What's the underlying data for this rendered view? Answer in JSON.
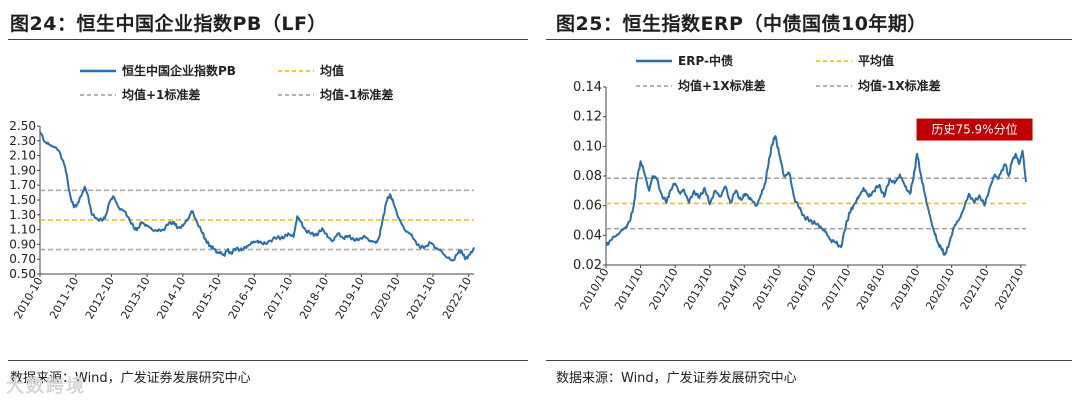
{
  "left": {
    "title": "图24：恒生中国企业指数PB（LF）",
    "source": "数据来源：Wind，广发证券发展研究中心",
    "chart_data": {
      "type": "line",
      "title": "图24：恒生中国企业指数PB（LF）",
      "ylim": [
        0.5,
        2.5
      ],
      "yticks": [
        "2.50",
        "2.30",
        "2.10",
        "1.90",
        "1.70",
        "1.50",
        "1.30",
        "1.10",
        "0.90",
        "0.70",
        "0.50"
      ],
      "xticks": [
        "2010-10",
        "2011-10",
        "2012-10",
        "2013-10",
        "2014-10",
        "2015-10",
        "2016-10",
        "2017-10",
        "2018-10",
        "2019-10",
        "2020-10",
        "2021-10",
        "2022-10"
      ],
      "x_start": 2010.75,
      "x_end": 2022.9,
      "legend": [
        "恒生中国企业指数PB",
        "均值",
        "均值+1标准差",
        "均值-1标准差"
      ],
      "legend_position": "top",
      "colors": {
        "series": "#2a6fa8",
        "mean": "#f0c419",
        "band": "#a6a6a6"
      },
      "reference_lines": {
        "mean": 1.23,
        "plus_1sd": 1.63,
        "minus_1sd": 0.83
      },
      "series": [
        {
          "name": "恒生中国企业指数PB",
          "t": [
            2010.75,
            2010.9,
            2011.0,
            2011.15,
            2011.3,
            2011.45,
            2011.6,
            2011.7,
            2011.8,
            2011.9,
            2012.0,
            2012.1,
            2012.2,
            2012.35,
            2012.5,
            2012.6,
            2012.7,
            2012.8,
            2012.95,
            2013.1,
            2013.25,
            2013.4,
            2013.5,
            2013.6,
            2013.75,
            2013.9,
            2014.05,
            2014.2,
            2014.35,
            2014.5,
            2014.6,
            2014.75,
            2014.9,
            2015.0,
            2015.15,
            2015.3,
            2015.4,
            2015.5,
            2015.6,
            2015.7,
            2015.8,
            2015.9,
            2016.0,
            2016.1,
            2016.25,
            2016.4,
            2016.55,
            2016.7,
            2016.85,
            2017.0,
            2017.2,
            2017.4,
            2017.55,
            2017.7,
            2017.85,
            2017.95,
            2018.05,
            2018.2,
            2018.35,
            2018.5,
            2018.65,
            2018.8,
            2018.95,
            2019.1,
            2019.25,
            2019.4,
            2019.55,
            2019.7,
            2019.85,
            2020.0,
            2020.15,
            2020.25,
            2020.35,
            2020.45,
            2020.55,
            2020.65,
            2020.8,
            2020.95,
            2021.1,
            2021.25,
            2021.4,
            2021.55,
            2021.7,
            2021.85,
            2022.0,
            2022.15,
            2022.3,
            2022.45,
            2022.55,
            2022.65,
            2022.75,
            2022.85,
            2022.9
          ],
          "values": [
            2.42,
            2.28,
            2.25,
            2.22,
            2.15,
            1.95,
            1.55,
            1.4,
            1.45,
            1.55,
            1.68,
            1.55,
            1.3,
            1.25,
            1.22,
            1.3,
            1.48,
            1.55,
            1.4,
            1.35,
            1.25,
            1.1,
            1.12,
            1.2,
            1.15,
            1.1,
            1.08,
            1.1,
            1.18,
            1.2,
            1.12,
            1.15,
            1.25,
            1.35,
            1.2,
            1.05,
            0.95,
            0.88,
            0.85,
            0.8,
            0.78,
            0.76,
            0.82,
            0.78,
            0.85,
            0.82,
            0.88,
            0.92,
            0.95,
            0.9,
            0.95,
            1.0,
            0.98,
            1.05,
            1.0,
            1.28,
            1.2,
            1.08,
            1.05,
            1.02,
            1.12,
            1.0,
            0.95,
            1.05,
            0.98,
            1.02,
            0.95,
            0.98,
            1.0,
            0.95,
            0.92,
            1.0,
            1.25,
            1.48,
            1.58,
            1.45,
            1.25,
            1.1,
            1.05,
            0.95,
            0.85,
            0.88,
            0.92,
            0.85,
            0.8,
            0.72,
            0.68,
            0.78,
            0.82,
            0.7,
            0.75,
            0.8,
            0.86
          ]
        }
      ]
    }
  },
  "right": {
    "title": "图25：恒生指数ERP（中债国债10年期）",
    "source": "数据来源：Wind，广发证券发展研究中心",
    "chart_data": {
      "type": "line",
      "title": "图25：恒生指数ERP（中债国债10年期）",
      "ylim": [
        0.02,
        0.14
      ],
      "yticks": [
        "0.14",
        "0.12",
        "0.10",
        "0.08",
        "0.06",
        "0.04",
        "0.02"
      ],
      "xticks": [
        "2010/10",
        "2011/10",
        "2012/10",
        "2013/10",
        "2014/10",
        "2015/10",
        "2016/10",
        "2017/10",
        "2018/10",
        "2019/10",
        "2020/10",
        "2021/10",
        "2022/10"
      ],
      "x_start": 2010.75,
      "x_end": 2022.9,
      "legend": [
        "ERP-中债",
        "平均值",
        "均值+1X标准差",
        "均值-1X标准差"
      ],
      "legend_position": "top",
      "colors": {
        "series": "#2a6fa8",
        "mean": "#f0c419",
        "band": "#a6a6a6",
        "annotation": "#c00000"
      },
      "reference_lines": {
        "mean": 0.0615,
        "plus_1sd": 0.0785,
        "minus_1sd": 0.0445
      },
      "annotation": {
        "text": "历史75.9%分位",
        "x": 2022.8,
        "y": 0.0985
      },
      "series": [
        {
          "name": "ERP-中债",
          "t": [
            2010.75,
            2010.85,
            2011.0,
            2011.15,
            2011.3,
            2011.45,
            2011.55,
            2011.65,
            2011.75,
            2011.85,
            2012.0,
            2012.1,
            2012.2,
            2012.35,
            2012.5,
            2012.6,
            2012.75,
            2012.9,
            2013.0,
            2013.15,
            2013.3,
            2013.45,
            2013.6,
            2013.75,
            2013.9,
            2014.05,
            2014.2,
            2014.35,
            2014.5,
            2014.65,
            2014.8,
            2014.95,
            2015.1,
            2015.25,
            2015.35,
            2015.45,
            2015.55,
            2015.65,
            2015.75,
            2015.9,
            2016.05,
            2016.2,
            2016.35,
            2016.5,
            2016.65,
            2016.8,
            2016.95,
            2017.1,
            2017.25,
            2017.4,
            2017.55,
            2017.7,
            2017.8,
            2017.9,
            2018.05,
            2018.2,
            2018.35,
            2018.5,
            2018.65,
            2018.8,
            2018.95,
            2019.1,
            2019.25,
            2019.4,
            2019.55,
            2019.65,
            2019.75,
            2019.85,
            2019.95,
            2020.05,
            2020.15,
            2020.25,
            2020.35,
            2020.45,
            2020.55,
            2020.65,
            2020.8,
            2020.95,
            2021.1,
            2021.25,
            2021.4,
            2021.55,
            2021.7,
            2021.85,
            2022.0,
            2022.1,
            2022.2,
            2022.3,
            2022.4,
            2022.5,
            2022.6,
            2022.7,
            2022.8,
            2022.9
          ],
          "values": [
            0.033,
            0.036,
            0.039,
            0.042,
            0.045,
            0.05,
            0.06,
            0.078,
            0.09,
            0.083,
            0.07,
            0.08,
            0.079,
            0.068,
            0.062,
            0.07,
            0.075,
            0.068,
            0.071,
            0.062,
            0.07,
            0.065,
            0.072,
            0.061,
            0.07,
            0.066,
            0.073,
            0.062,
            0.07,
            0.064,
            0.068,
            0.064,
            0.06,
            0.068,
            0.075,
            0.088,
            0.101,
            0.107,
            0.096,
            0.08,
            0.082,
            0.065,
            0.058,
            0.052,
            0.05,
            0.048,
            0.046,
            0.042,
            0.037,
            0.035,
            0.032,
            0.048,
            0.055,
            0.06,
            0.065,
            0.072,
            0.066,
            0.07,
            0.074,
            0.066,
            0.078,
            0.075,
            0.081,
            0.073,
            0.068,
            0.08,
            0.095,
            0.082,
            0.07,
            0.06,
            0.05,
            0.042,
            0.035,
            0.031,
            0.027,
            0.032,
            0.045,
            0.05,
            0.058,
            0.068,
            0.062,
            0.067,
            0.06,
            0.072,
            0.081,
            0.078,
            0.084,
            0.088,
            0.08,
            0.09,
            0.095,
            0.088,
            0.097,
            0.076
          ]
        }
      ]
    }
  },
  "watermark": "大数跨境"
}
